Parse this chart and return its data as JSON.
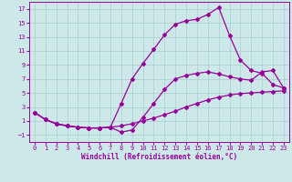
{
  "xlabel": "Windchill (Refroidissement éolien,°C)",
  "background_color": "#cce8e8",
  "grid_color": "#aacece",
  "line_color": "#990099",
  "xlim": [
    -0.5,
    23.5
  ],
  "ylim": [
    -2,
    18
  ],
  "xticks": [
    0,
    1,
    2,
    3,
    4,
    5,
    6,
    7,
    8,
    9,
    10,
    11,
    12,
    13,
    14,
    15,
    16,
    17,
    18,
    19,
    20,
    21,
    22,
    23
  ],
  "yticks": [
    -1,
    1,
    3,
    5,
    7,
    9,
    11,
    13,
    15,
    17
  ],
  "line1_x": [
    0,
    1,
    2,
    3,
    4,
    5,
    6,
    7,
    8,
    9,
    10,
    11,
    12,
    13,
    14,
    15,
    16,
    17,
    18,
    19,
    20,
    21,
    22,
    23
  ],
  "line1_y": [
    2.2,
    1.2,
    0.6,
    0.3,
    0.1,
    0.0,
    0.0,
    0.1,
    0.3,
    0.6,
    1.0,
    1.4,
    1.9,
    2.4,
    3.0,
    3.5,
    4.0,
    4.4,
    4.7,
    4.9,
    5.0,
    5.1,
    5.2,
    5.3
  ],
  "line2_x": [
    0,
    1,
    2,
    3,
    4,
    5,
    6,
    7,
    8,
    9,
    10,
    11,
    12,
    13,
    14,
    15,
    16,
    17,
    18,
    19,
    20,
    21,
    22,
    23
  ],
  "line2_y": [
    2.2,
    1.2,
    0.6,
    0.3,
    0.1,
    0.0,
    0.0,
    0.1,
    3.5,
    7.0,
    9.2,
    11.2,
    13.3,
    14.8,
    15.3,
    15.5,
    16.2,
    17.2,
    13.2,
    9.7,
    8.2,
    7.8,
    6.2,
    5.7
  ],
  "line3_x": [
    0,
    1,
    2,
    3,
    4,
    5,
    6,
    7,
    8,
    9,
    10,
    11,
    12,
    13,
    14,
    15,
    16,
    17,
    18,
    19,
    20,
    21,
    22,
    23
  ],
  "line3_y": [
    2.2,
    1.2,
    0.6,
    0.3,
    0.1,
    0.0,
    0.0,
    0.1,
    -0.6,
    -0.3,
    1.5,
    3.5,
    5.5,
    7.0,
    7.5,
    7.8,
    8.0,
    7.7,
    7.3,
    7.0,
    6.8,
    8.0,
    8.2,
    5.7
  ]
}
